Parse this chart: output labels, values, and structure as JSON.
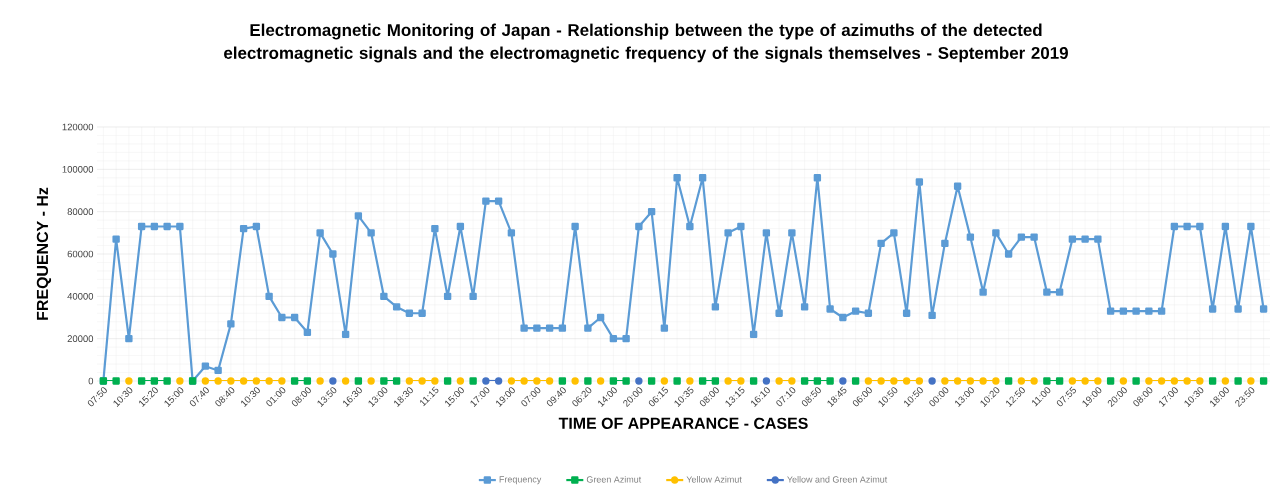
{
  "chart_data": {
    "type": "line",
    "title": "Electromagnetic Monitoring of Japan - Relationship between the type of azimuths of the detected electromagnetic signals and the electromagnetic frequency of the signals themselves -  September 2019",
    "xlabel": "TIME OF APPEARANCE - CASES",
    "ylabel": "FREQUENCY - Hz",
    "categories": [
      "07:50",
      null,
      "10:30",
      null,
      "15:20",
      null,
      "15:00",
      null,
      "07:40",
      null,
      "08:40",
      null,
      "10:30",
      null,
      "01:00",
      null,
      "08:00",
      null,
      "13:50",
      null,
      "16:30",
      null,
      "13:00",
      null,
      "18:30",
      null,
      "11:15",
      null,
      "15:00",
      null,
      "17:00",
      null,
      "19:00",
      null,
      "07:00",
      null,
      "09:40",
      null,
      "06:20",
      null,
      "14:00",
      null,
      "20:00",
      null,
      "06:15",
      null,
      "10:35",
      null,
      "08:00",
      null,
      "13:15",
      null,
      "16:10",
      null,
      "07:10",
      null,
      "08:50",
      null,
      "18:45",
      null,
      "06:00",
      null,
      "10:50",
      null,
      "10:50",
      null,
      "00:00",
      null,
      "13:00",
      null,
      "10:20",
      null,
      "12:50",
      null,
      "11:00",
      null,
      "07:55",
      null,
      "19:00",
      null,
      "20:00",
      null,
      "08:00",
      null,
      "17:00",
      null,
      "10:30",
      null,
      "18:00",
      null,
      "23:50",
      null
    ],
    "series": [
      {
        "name": "Frequency",
        "color": "#5b9bd5",
        "marker": "square",
        "values": [
          0,
          67000,
          20000,
          73000,
          73000,
          73000,
          73000,
          0,
          7000,
          5000,
          27000,
          72000,
          73000,
          40000,
          30000,
          30000,
          23000,
          70000,
          60000,
          22000,
          78000,
          70000,
          40000,
          35000,
          32000,
          32000,
          72000,
          40000,
          73000,
          40000,
          85000,
          85000,
          70000,
          25000,
          25000,
          25000,
          25000,
          73000,
          25000,
          30000,
          20000,
          20000,
          73000,
          80000,
          25000,
          96000,
          73000,
          96000,
          35000,
          70000,
          73000,
          22000,
          70000,
          32000,
          70000,
          35000,
          96000,
          34000,
          30000,
          33000,
          32000,
          65000,
          70000,
          32000,
          94000,
          31000,
          65000,
          92000,
          68000,
          42000,
          70000,
          60000,
          68000,
          68000,
          42000,
          42000,
          67000,
          67000,
          67000,
          33000,
          33000,
          33000,
          33000,
          33000,
          73000,
          73000,
          73000,
          34000,
          73000,
          34000,
          73000,
          34000
        ]
      },
      {
        "name": "Green Azimut",
        "color": "#00b050",
        "marker": "square",
        "values": [
          0,
          0,
          null,
          0,
          0,
          0,
          null,
          0,
          null,
          null,
          null,
          null,
          null,
          null,
          null,
          0,
          0,
          null,
          null,
          null,
          0,
          null,
          0,
          0,
          null,
          null,
          null,
          0,
          null,
          0,
          null,
          null,
          null,
          null,
          null,
          null,
          0,
          null,
          0,
          null,
          0,
          0,
          null,
          0,
          null,
          0,
          null,
          0,
          0,
          null,
          null,
          0,
          null,
          null,
          null,
          0,
          0,
          0,
          null,
          0,
          null,
          null,
          null,
          null,
          null,
          null,
          null,
          null,
          null,
          null,
          null,
          0,
          null,
          null,
          0,
          0,
          null,
          null,
          null,
          0,
          null,
          0,
          null,
          null,
          null,
          null,
          null,
          0,
          null,
          0,
          null,
          0
        ]
      },
      {
        "name": "Yellow Azimut",
        "color": "#ffc000",
        "marker": "circle",
        "values": [
          null,
          null,
          0,
          null,
          null,
          null,
          0,
          null,
          0,
          0,
          0,
          0,
          0,
          0,
          0,
          null,
          null,
          0,
          null,
          0,
          null,
          0,
          null,
          null,
          0,
          0,
          0,
          null,
          0,
          null,
          null,
          null,
          0,
          0,
          0,
          0,
          null,
          0,
          null,
          0,
          null,
          null,
          null,
          null,
          0,
          null,
          0,
          null,
          null,
          0,
          0,
          null,
          null,
          0,
          0,
          null,
          null,
          null,
          null,
          null,
          0,
          0,
          0,
          0,
          0,
          null,
          0,
          0,
          0,
          0,
          0,
          null,
          0,
          0,
          null,
          null,
          0,
          0,
          0,
          null,
          0,
          null,
          0,
          0,
          0,
          0,
          0,
          null,
          0,
          null,
          0,
          null
        ]
      },
      {
        "name": "Yellow and Green Azimut",
        "color": "#4472c4",
        "marker": "circle",
        "values": [
          null,
          null,
          null,
          null,
          null,
          null,
          null,
          null,
          null,
          null,
          null,
          null,
          null,
          null,
          null,
          null,
          null,
          null,
          0,
          null,
          null,
          null,
          null,
          null,
          null,
          null,
          null,
          null,
          null,
          null,
          0,
          0,
          null,
          null,
          null,
          null,
          null,
          null,
          null,
          null,
          null,
          null,
          0,
          null,
          null,
          null,
          null,
          null,
          null,
          null,
          null,
          null,
          0,
          null,
          null,
          null,
          null,
          null,
          0,
          null,
          null,
          null,
          null,
          null,
          null,
          0,
          null,
          null,
          null,
          null,
          null,
          null,
          null,
          null,
          null,
          null,
          null,
          null,
          null,
          null,
          null,
          null,
          null,
          null,
          null,
          null,
          null,
          null,
          null,
          null,
          null,
          null
        ]
      }
    ],
    "ylim": [
      0,
      120000
    ],
    "yticks": [
      0,
      20000,
      40000,
      60000,
      80000,
      100000,
      120000
    ],
    "grid": true,
    "legend": "bottom",
    "line_style": "solid"
  }
}
